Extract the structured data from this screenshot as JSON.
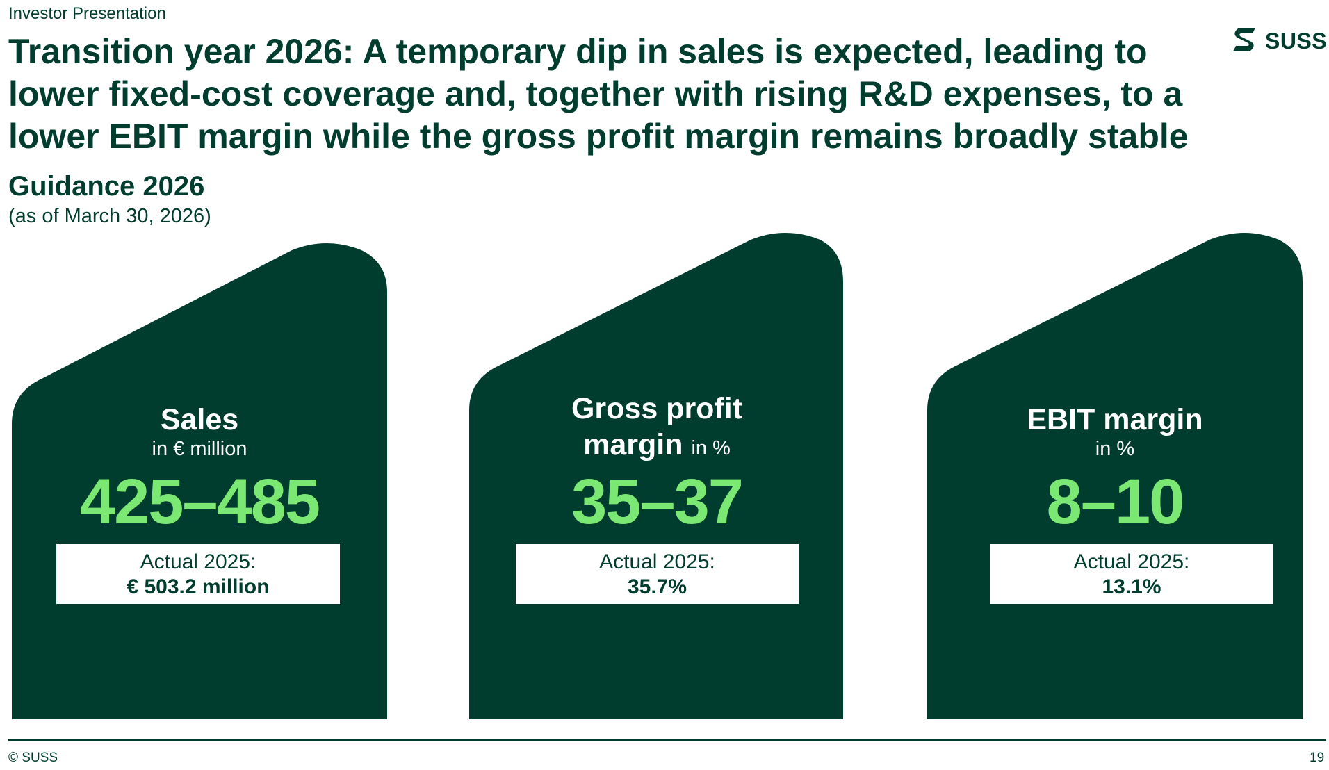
{
  "header": {
    "label": "Investor Presentation"
  },
  "title": "Transition year 2026: A temporary dip in sales is expected, leading to lower fixed-cost coverage and, together with rising R&D expenses, to a lower EBIT margin while the gross profit margin remains broadly stable",
  "logo": {
    "text": "SUSS",
    "icon": "suss-logo-icon"
  },
  "guidance": {
    "title": "Guidance 2026",
    "date": "(as of March 30, 2026)"
  },
  "cards": [
    {
      "title": "Sales",
      "unit": "in € million",
      "value": "425–485",
      "actual_label": "Actual 2025:",
      "actual_value": "€ 503.2 million"
    },
    {
      "title_line1": "Gross profit",
      "title_line2": "margin",
      "unit": "in %",
      "value": "35–37",
      "actual_label": "Actual 2025:",
      "actual_value": "35.7%"
    },
    {
      "title": "EBIT margin",
      "unit": "in %",
      "value": "8–10",
      "actual_label": "Actual 2025:",
      "actual_value": "13.1%"
    }
  ],
  "footer": {
    "copyright": "© SUSS",
    "page_number": "19"
  },
  "colors": {
    "dark_green": "#003d2e",
    "accent_green": "#7ae873",
    "white": "#ffffff"
  }
}
